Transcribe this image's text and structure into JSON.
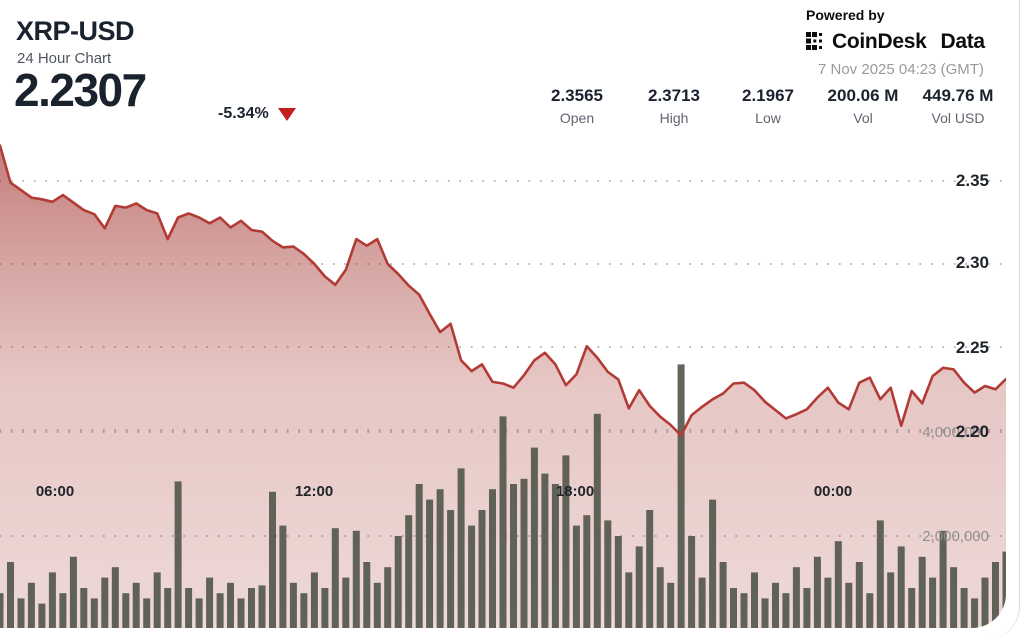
{
  "header": {
    "symbol": "XRP-USD",
    "subtitle": "24 Hour Chart",
    "price": "2.2307",
    "change": "-5.34%",
    "change_direction": "down",
    "powered_by": "Powered by",
    "brand_primary": "CoinDesk",
    "brand_secondary": "Data",
    "timestamp": "7 Nov 2025 04:23 (GMT)",
    "stats": [
      {
        "value": "2.3565",
        "label": "Open"
      },
      {
        "value": "2.3713",
        "label": "High"
      },
      {
        "value": "2.1967",
        "label": "Low"
      },
      {
        "value": "200.06 M",
        "label": "Vol"
      },
      {
        "value": "449.76 M",
        "label": "Vol USD"
      }
    ]
  },
  "colors": {
    "text_dark": "#1a222e",
    "text_gray": "#5f6670",
    "timestamp_gray": "#9a9a9a",
    "line_red": "#b23b35",
    "triangle_red": "#c2201f",
    "bar_gray": "#54584d",
    "grid_dot": "#9b9b95"
  },
  "chart_data": {
    "type": "area",
    "title": "XRP-USD 24 Hour Chart",
    "subtype": "price line with volume bars",
    "x_axis": {
      "tick_labels": [
        "06:00",
        "12:00",
        "18:00",
        "00:00"
      ],
      "span_hours": 24,
      "interval_minutes": 15
    },
    "price_axis": {
      "side": "right",
      "tick_labels": [
        "2.35",
        "2.30",
        "2.25",
        "2.20"
      ],
      "ticks": [
        2.35,
        2.3,
        2.25,
        2.2
      ],
      "range": [
        2.19,
        2.3713
      ],
      "grid": "dotted"
    },
    "volume_axis": {
      "side": "right",
      "tick_labels": [
        "4,000,000",
        "2,000,000"
      ],
      "ticks_millions": [
        4,
        2
      ]
    },
    "series": [
      {
        "name": "price",
        "type": "line-area",
        "color": "#b23b35",
        "values": [
          2.3713,
          2.349,
          2.3445,
          2.34,
          2.339,
          2.3375,
          2.3415,
          2.337,
          2.3325,
          2.33,
          2.3215,
          2.335,
          2.334,
          2.3365,
          2.3325,
          2.3305,
          2.315,
          2.328,
          2.3305,
          2.328,
          2.3245,
          2.328,
          2.322,
          2.326,
          2.3205,
          2.3195,
          2.314,
          2.31,
          2.3105,
          2.306,
          2.3,
          2.2925,
          2.2875,
          2.2965,
          2.315,
          2.311,
          2.315,
          2.3,
          2.294,
          2.287,
          2.2815,
          2.27,
          2.259,
          2.264,
          2.242,
          2.2355,
          2.2395,
          2.229,
          2.228,
          2.2255,
          2.233,
          2.242,
          2.2465,
          2.2395,
          2.227,
          2.2335,
          2.2505,
          2.2435,
          2.235,
          2.2305,
          2.213,
          2.224,
          2.2145,
          2.208,
          2.203,
          2.1967,
          2.209,
          2.214,
          2.2185,
          2.222,
          2.228,
          2.2285,
          2.224,
          2.217,
          2.212,
          2.207,
          2.2095,
          2.2125,
          2.2195,
          2.2255,
          2.2165,
          2.2125,
          2.2285,
          2.2315,
          2.2185,
          2.2255,
          2.2025,
          2.2235,
          2.216,
          2.2325,
          2.2375,
          2.2365,
          2.2285,
          2.2225,
          2.2265,
          2.2245,
          2.2307
        ]
      },
      {
        "name": "volume",
        "type": "bar",
        "color": "#54584d",
        "unit": "millions",
        "values": [
          0.9,
          1.5,
          0.8,
          1.1,
          0.7,
          1.3,
          0.9,
          1.6,
          1.0,
          0.8,
          1.2,
          1.4,
          0.9,
          1.1,
          0.8,
          1.3,
          1.0,
          3.05,
          1.0,
          0.8,
          1.2,
          0.9,
          1.1,
          0.8,
          1.0,
          1.05,
          2.85,
          2.2,
          1.1,
          0.9,
          1.3,
          1.0,
          2.15,
          1.2,
          2.1,
          1.5,
          1.1,
          1.4,
          2.0,
          2.4,
          3.0,
          2.7,
          2.9,
          2.5,
          3.3,
          2.2,
          2.5,
          2.9,
          4.3,
          3.0,
          3.1,
          3.7,
          3.2,
          3.0,
          3.55,
          2.2,
          2.4,
          4.35,
          2.3,
          2.0,
          1.3,
          1.8,
          2.5,
          1.4,
          1.1,
          5.3,
          2.0,
          1.2,
          2.7,
          1.5,
          1.0,
          0.9,
          1.3,
          0.8,
          1.1,
          0.9,
          1.4,
          1.0,
          1.6,
          1.2,
          1.9,
          1.1,
          1.5,
          0.9,
          2.3,
          1.3,
          1.8,
          1.0,
          1.6,
          1.2,
          2.1,
          1.4,
          1.0,
          0.8,
          1.2,
          1.5,
          1.7
        ]
      }
    ],
    "legend": "none"
  }
}
